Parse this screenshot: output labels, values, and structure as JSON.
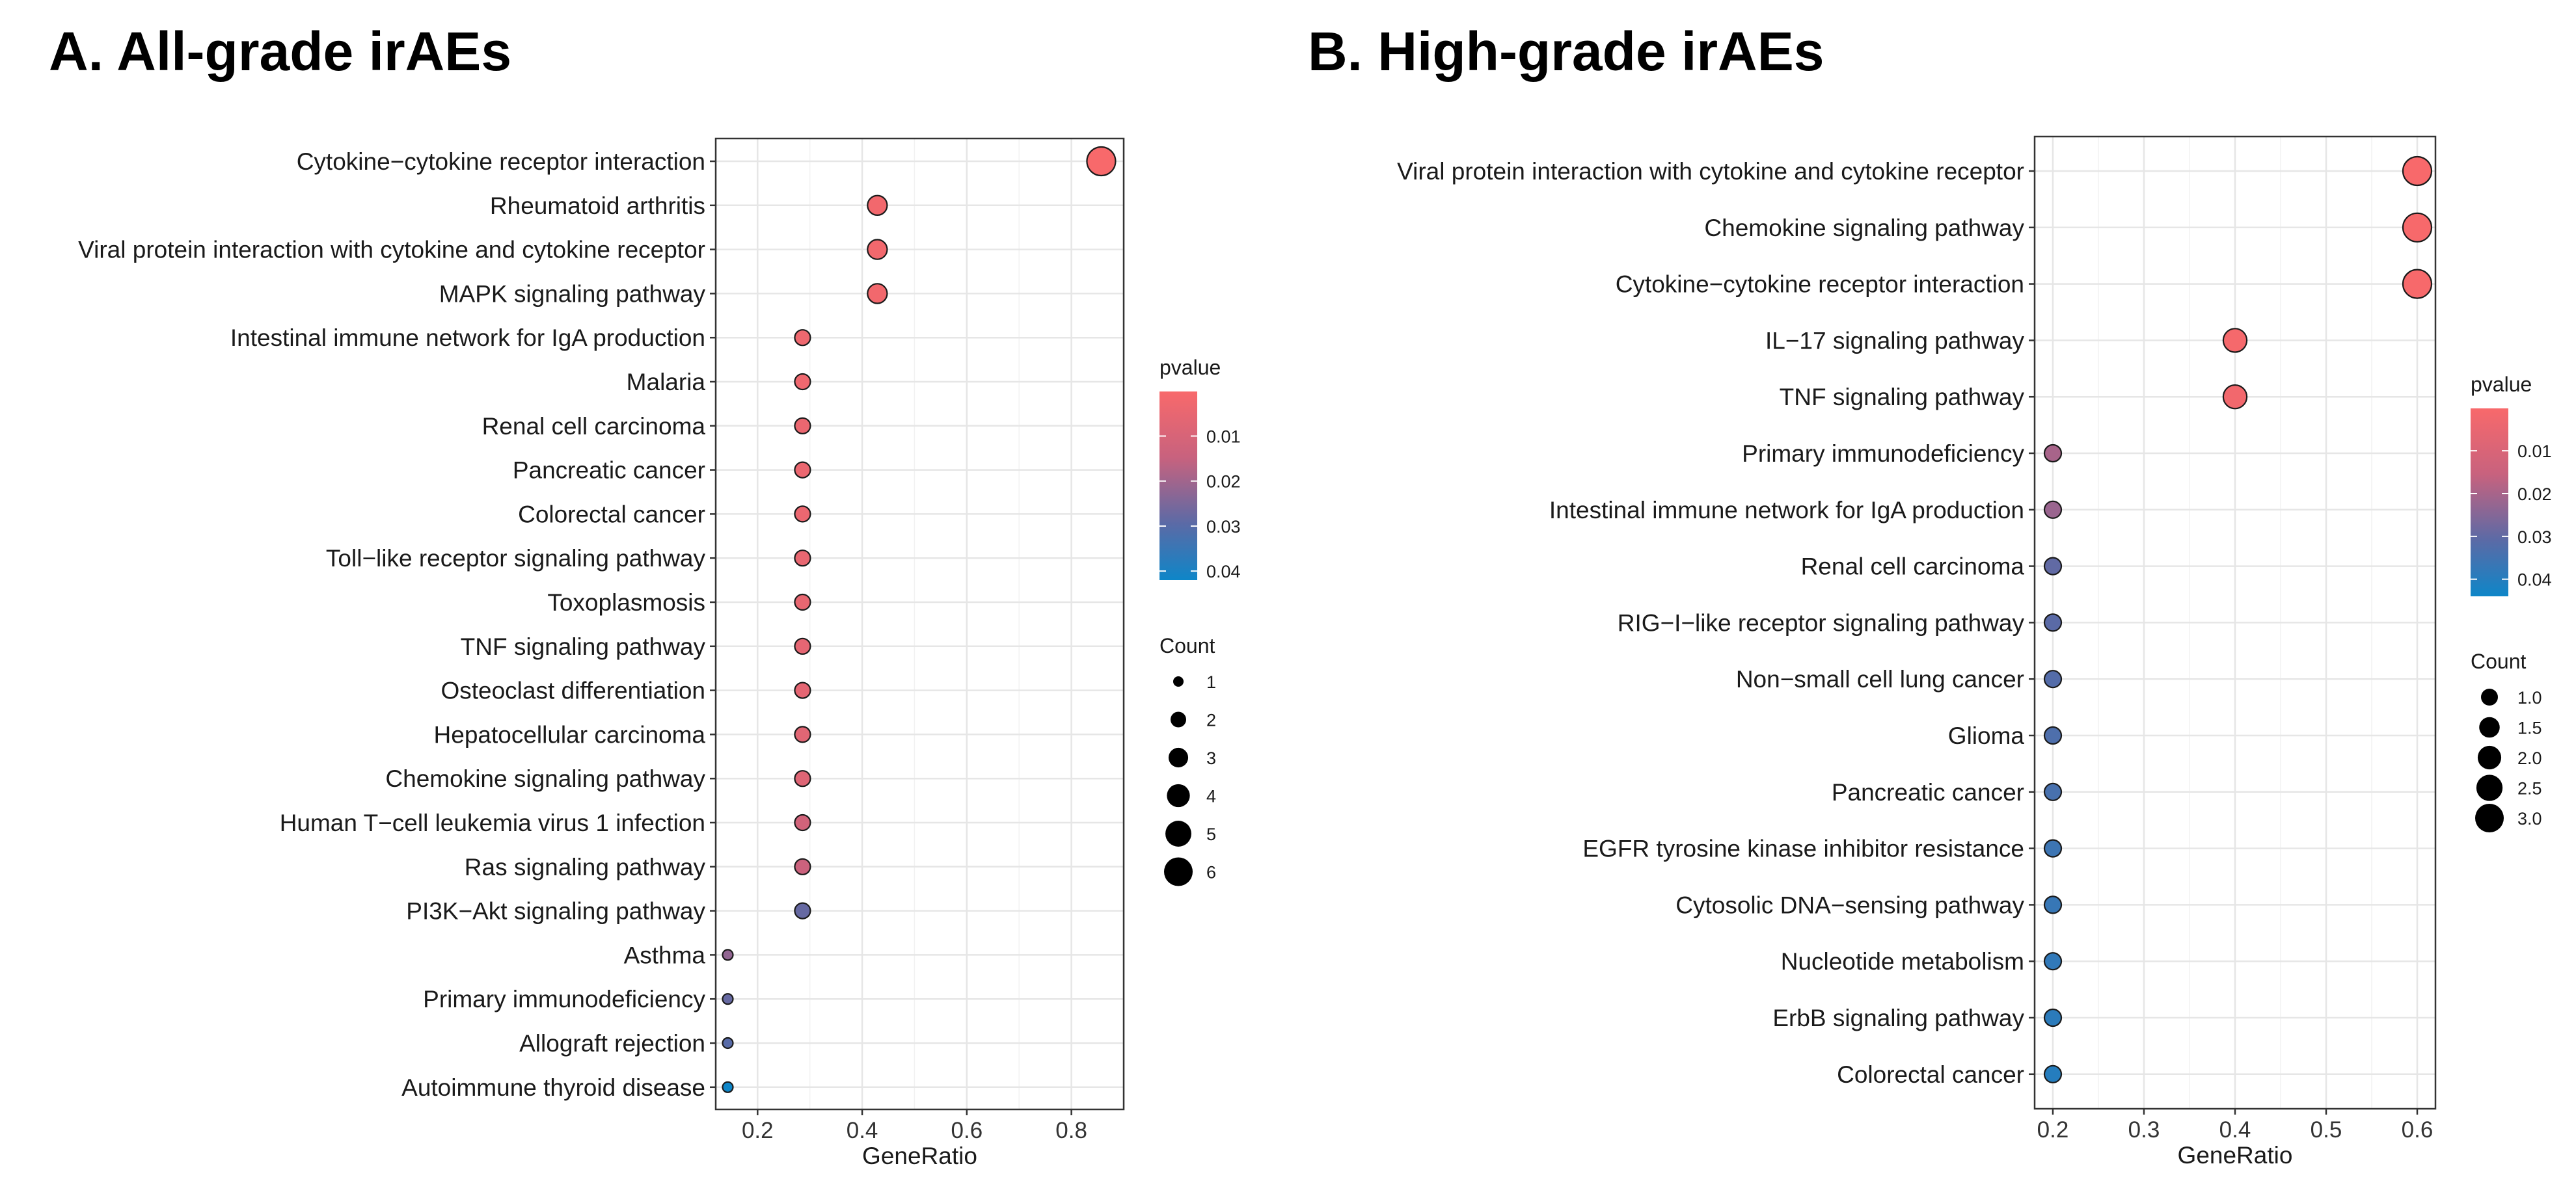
{
  "chart_data": [
    {
      "type": "scatter",
      "title": "A. All-grade irAEs",
      "xlabel": "GeneRatio",
      "ylabel": "",
      "xlim": [
        0.12,
        0.9
      ],
      "xticks": [
        0.2,
        0.4,
        0.6,
        0.8
      ],
      "xtick_labels": [
        "0.2",
        "0.4",
        "0.6",
        "0.8"
      ],
      "grid": true,
      "categories": [
        "Cytokine−cytokine receptor interaction",
        "Rheumatoid arthritis",
        "Viral protein interaction with cytokine and cytokine receptor",
        "MAPK signaling pathway",
        "Intestinal immune network for IgA production",
        "Malaria",
        "Renal cell carcinoma",
        "Pancreatic cancer",
        "Colorectal cancer",
        "Toll−like receptor signaling pathway",
        "Toxoplasmosis",
        "TNF signaling pathway",
        "Osteoclast differentiation",
        "Hepatocellular carcinoma",
        "Chemokine signaling pathway",
        "Human T−cell leukemia virus 1 infection",
        "Ras signaling pathway",
        "PI3K−Akt signaling pathway",
        "Asthma",
        "Primary immunodeficiency",
        "Allograft rejection",
        "Autoimmune thyroid disease"
      ],
      "gene_ratio": [
        0.857,
        0.429,
        0.429,
        0.429,
        0.286,
        0.286,
        0.286,
        0.286,
        0.286,
        0.286,
        0.286,
        0.286,
        0.286,
        0.286,
        0.286,
        0.286,
        0.286,
        0.286,
        0.143,
        0.143,
        0.143,
        0.143
      ],
      "count": [
        6,
        3,
        3,
        3,
        2,
        2,
        2,
        2,
        2,
        2,
        2,
        2,
        2,
        2,
        2,
        2,
        2,
        2,
        1,
        1,
        1,
        1
      ],
      "pvalue": [
        0.0001,
        0.002,
        0.002,
        0.002,
        0.003,
        0.003,
        0.004,
        0.004,
        0.004,
        0.005,
        0.005,
        0.006,
        0.006,
        0.007,
        0.008,
        0.012,
        0.014,
        0.028,
        0.022,
        0.028,
        0.03,
        0.042
      ],
      "color_legend": {
        "title": "pvalue",
        "range": [
          0.0001,
          0.042
        ],
        "ticks": [
          0.01,
          0.02,
          0.03,
          0.04
        ],
        "tick_labels": [
          "0.01",
          "0.02",
          "0.03",
          "0.04"
        ]
      },
      "size_legend": {
        "title": "Count",
        "values": [
          1,
          2,
          3,
          4,
          5,
          6
        ],
        "labels": [
          "1",
          "2",
          "3",
          "4",
          "5",
          "6"
        ],
        "range": [
          1,
          6
        ]
      }
    },
    {
      "type": "scatter",
      "title": "B. High-grade irAEs",
      "xlabel": "GeneRatio",
      "ylabel": "",
      "xlim": [
        0.18,
        0.62
      ],
      "xticks": [
        0.2,
        0.3,
        0.4,
        0.5,
        0.6
      ],
      "xtick_labels": [
        "0.2",
        "0.3",
        "0.4",
        "0.5",
        "0.6"
      ],
      "grid": true,
      "categories": [
        "Viral protein interaction with cytokine and cytokine receptor",
        "Chemokine signaling pathway",
        "Cytokine−cytokine receptor interaction",
        "IL−17 signaling pathway",
        "TNF signaling pathway",
        "Primary immunodeficiency",
        "Intestinal immune network for IgA production",
        "Renal cell carcinoma",
        "RIG−I−like receptor signaling pathway",
        "Non−small cell lung cancer",
        "Glioma",
        "Pancreatic cancer",
        "EGFR tyrosine kinase inhibitor resistance",
        "Cytosolic DNA−sensing pathway",
        "Nucleotide metabolism",
        "ErbB signaling pathway",
        "Colorectal cancer"
      ],
      "gene_ratio": [
        0.6,
        0.6,
        0.6,
        0.4,
        0.4,
        0.2,
        0.2,
        0.2,
        0.2,
        0.2,
        0.2,
        0.2,
        0.2,
        0.2,
        0.2,
        0.2,
        0.2
      ],
      "count": [
        3,
        3,
        3,
        2,
        2,
        1,
        1,
        1,
        1,
        1,
        1,
        1,
        1,
        1,
        1,
        1,
        1
      ],
      "pvalue": [
        0.0001,
        0.0003,
        0.0005,
        0.001,
        0.002,
        0.02,
        0.022,
        0.03,
        0.031,
        0.032,
        0.033,
        0.034,
        0.036,
        0.037,
        0.038,
        0.039,
        0.04
      ],
      "color_legend": {
        "title": "pvalue",
        "range": [
          0.0001,
          0.044
        ],
        "ticks": [
          0.01,
          0.02,
          0.03,
          0.04
        ],
        "tick_labels": [
          "0.01",
          "0.02",
          "0.03",
          "0.04"
        ]
      },
      "size_legend": {
        "title": "Count",
        "values": [
          1.0,
          1.5,
          2.0,
          2.5,
          3.0
        ],
        "labels": [
          "1.0",
          "1.5",
          "2.0",
          "2.5",
          "3.0"
        ],
        "range": [
          1,
          3
        ]
      }
    }
  ]
}
